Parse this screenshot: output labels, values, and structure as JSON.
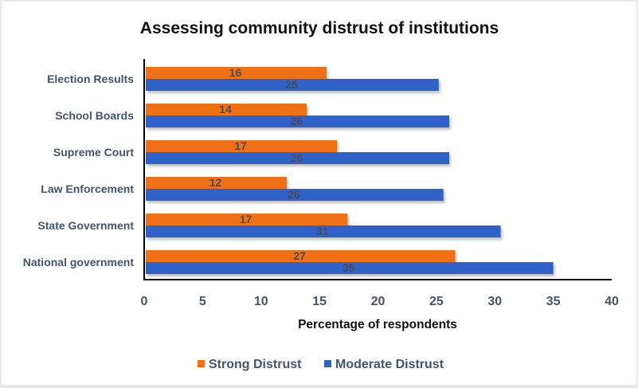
{
  "chart_data": {
    "type": "bar",
    "orientation": "horizontal",
    "title": "Assessing community distrust of institutions",
    "xlabel": "Percentage of respondents",
    "ylabel": "",
    "xlim": [
      0,
      40
    ],
    "xticks": [
      "0",
      "5",
      "10",
      "15",
      "20",
      "25",
      "30",
      "35",
      "40"
    ],
    "grid": false,
    "legend": "bottom",
    "categories": [
      "Election Results",
      "School Boards",
      "Supreme Court",
      "Law Enforcement",
      "State Government",
      "National government"
    ],
    "series": [
      {
        "name": "Strong Distrust",
        "color": "#f07019",
        "values": [
          15.6,
          13.9,
          16.5,
          12.2,
          17.4,
          26.6
        ],
        "labels": [
          "16",
          "14",
          "17",
          "12",
          "17",
          "27"
        ]
      },
      {
        "name": "Moderate Distrust",
        "color": "#2e62c8",
        "values": [
          25.2,
          26.1,
          26.1,
          25.6,
          30.5,
          35.0
        ],
        "labels": [
          "25",
          "26",
          "26",
          "26",
          "31",
          "35"
        ]
      }
    ]
  }
}
